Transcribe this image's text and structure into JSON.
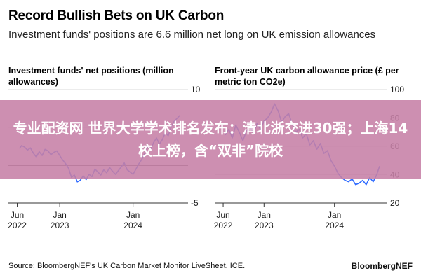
{
  "header": {
    "title": "Record Bullish Bets on UK Carbon",
    "subtitle": "Investment funds' positions are 6.6 million net long on UK emission allowances"
  },
  "banner": {
    "text": "专业配资网 世界大学学术排名发布：清北浙交进30强；上海14校上榜，含“双非”院校"
  },
  "footer": {
    "source": "Source: BloombergNEF's UK Carbon Market Monitor LiveSheet, ICE.",
    "brand": "BloombergNEF"
  },
  "colors": {
    "line": "#2f6bff",
    "zero_line": "#000000",
    "grid": "#d9d9d9",
    "banner": "#c680a6"
  },
  "chart_data": [
    {
      "type": "line",
      "title": "Investment funds' net positions (million allowances)",
      "ylim": [
        -5,
        10
      ],
      "yticks": [
        10,
        5,
        0,
        -5
      ],
      "ytick_labels": [
        "10",
        "5",
        "",
        "-5"
      ],
      "xticks": [
        {
          "x": 2022.42,
          "label_top": "Jun",
          "label_bottom": "2022"
        },
        {
          "x": 2023.0,
          "label_top": "Jan",
          "label_bottom": "2023"
        },
        {
          "x": 2024.0,
          "label_top": "Jan",
          "label_bottom": "2024"
        }
      ],
      "xlim": [
        2022.3,
        2024.75
      ],
      "series": [
        {
          "x": [
            2022.45,
            2022.48,
            2022.52,
            2022.56,
            2022.6,
            2022.64,
            2022.68,
            2022.72,
            2022.76,
            2022.8,
            2022.84,
            2022.88,
            2022.92,
            2022.96,
            2023.0,
            2023.04,
            2023.08,
            2023.12,
            2023.16,
            2023.2,
            2023.24,
            2023.28,
            2023.32,
            2023.36,
            2023.4,
            2023.44,
            2023.48,
            2023.52,
            2023.56,
            2023.6,
            2023.64,
            2023.68,
            2023.72,
            2023.76,
            2023.8,
            2023.84,
            2023.88,
            2023.92,
            2023.96,
            2024.0,
            2024.04,
            2024.08,
            2024.12,
            2024.16,
            2024.2,
            2024.24,
            2024.28,
            2024.32,
            2024.36,
            2024.4,
            2024.44,
            2024.48,
            2024.52,
            2024.56,
            2024.6,
            2024.64
          ],
          "values": [
            2.2,
            2.6,
            2.4,
            2.0,
            2.3,
            1.6,
            1.1,
            1.8,
            1.3,
            2.1,
            1.9,
            1.4,
            1.7,
            1.9,
            1.3,
            0.7,
            0.2,
            -0.4,
            -1.6,
            -1.3,
            -2.2,
            -2.0,
            -1.4,
            -1.9,
            -1.2,
            -1.5,
            -0.5,
            -0.9,
            -1.3,
            -0.6,
            -1.0,
            -0.3,
            -0.8,
            -1.2,
            -0.7,
            -0.2,
            0.3,
            -0.6,
            -0.9,
            -1.2,
            -0.5,
            0.2,
            0.8,
            1.6,
            2.4,
            2.1,
            3.0,
            3.6,
            2.8,
            3.4,
            4.3,
            3.9,
            5.1,
            5.8,
            6.2,
            6.6
          ]
        }
      ]
    },
    {
      "type": "line",
      "title": "Front-year UK carbon allowance price (£ per metric ton CO2e)",
      "ylim": [
        20,
        100
      ],
      "yticks": [
        100,
        80,
        60,
        40,
        20
      ],
      "ytick_labels": [
        "100",
        "80",
        "60",
        "40",
        "20"
      ],
      "xticks": [
        {
          "x": 2022.42,
          "label_top": "Jun",
          "label_bottom": "2022"
        },
        {
          "x": 2023.0,
          "label_top": "Jan",
          "label_bottom": "2023"
        },
        {
          "x": 2024.0,
          "label_top": "Jan",
          "label_bottom": "2024"
        }
      ],
      "xlim": [
        2022.3,
        2024.75
      ],
      "series": [
        {
          "x": [
            2022.45,
            2022.5,
            2022.55,
            2022.6,
            2022.65,
            2022.7,
            2022.75,
            2022.8,
            2022.85,
            2022.9,
            2022.95,
            2023.0,
            2023.05,
            2023.1,
            2023.15,
            2023.2,
            2023.25,
            2023.3,
            2023.35,
            2023.4,
            2023.45,
            2023.5,
            2023.55,
            2023.6,
            2023.65,
            2023.7,
            2023.75,
            2023.8,
            2023.85,
            2023.9,
            2023.95,
            2024.0,
            2024.05,
            2024.1,
            2024.15,
            2024.2,
            2024.25,
            2024.3,
            2024.35,
            2024.4,
            2024.45,
            2024.5,
            2024.55,
            2024.6,
            2024.64
          ],
          "values": [
            68,
            72,
            66,
            75,
            70,
            64,
            71,
            74,
            69,
            76,
            72,
            78,
            80,
            84,
            90,
            85,
            77,
            81,
            83,
            76,
            70,
            72,
            66,
            69,
            61,
            64,
            58,
            62,
            55,
            57,
            50,
            46,
            41,
            38,
            36,
            35,
            37,
            33,
            34,
            36,
            33,
            38,
            35,
            40,
            46
          ]
        }
      ]
    }
  ]
}
